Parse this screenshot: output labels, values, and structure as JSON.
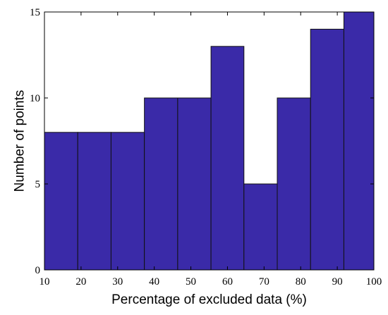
{
  "chart_data": {
    "type": "bar",
    "title": "",
    "xlabel": "Percentage of excluded data (%)",
    "ylabel": "Number of points",
    "xlim": [
      10,
      100
    ],
    "ylim": [
      0,
      15
    ],
    "x_ticks": [
      "10",
      "20",
      "30",
      "40",
      "50",
      "60",
      "70",
      "80",
      "90",
      "100"
    ],
    "y_ticks": [
      "0",
      "5",
      "10",
      "15"
    ],
    "bins": [
      {
        "start": 10.0,
        "end": 19.1,
        "value": 8
      },
      {
        "start": 19.1,
        "end": 28.2,
        "value": 8
      },
      {
        "start": 28.2,
        "end": 37.3,
        "value": 8
      },
      {
        "start": 37.3,
        "end": 46.4,
        "value": 10
      },
      {
        "start": 46.4,
        "end": 55.5,
        "value": 10
      },
      {
        "start": 55.5,
        "end": 64.5,
        "value": 13
      },
      {
        "start": 64.5,
        "end": 73.6,
        "value": 5
      },
      {
        "start": 73.6,
        "end": 82.7,
        "value": 10
      },
      {
        "start": 82.7,
        "end": 91.8,
        "value": 14
      },
      {
        "start": 91.8,
        "end": 100.0,
        "value": 15
      }
    ],
    "grid": false,
    "colors": {
      "bar": "#3a2aa8",
      "bar_edge": "#111111",
      "axis": "#000000"
    }
  }
}
